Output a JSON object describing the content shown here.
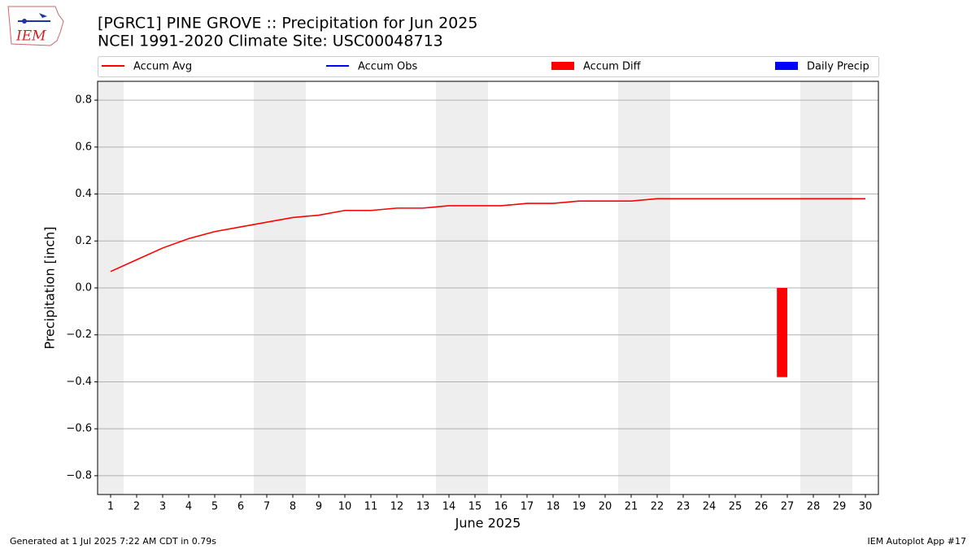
{
  "chart_data": {
    "type": "line",
    "title": "[PGRC1] PINE GROVE :: Precipitation for Jun 2025",
    "subtitle": "NCEI 1991-2020 Climate Site: USC00048713",
    "xlabel": "June 2025",
    "ylabel": "Precipitation [inch]",
    "logo": "IEM",
    "footer_left": "Generated at 1 Jul 2025 7:22 AM CDT in 0.79s",
    "footer_right": "IEM Autoplot App #17",
    "x": [
      1,
      2,
      3,
      4,
      5,
      6,
      7,
      8,
      9,
      10,
      11,
      12,
      13,
      14,
      15,
      16,
      17,
      18,
      19,
      20,
      21,
      22,
      23,
      24,
      25,
      26,
      27,
      28,
      29,
      30
    ],
    "xlim": [
      0.5,
      30.5
    ],
    "xticks": [
      1,
      2,
      3,
      4,
      5,
      6,
      7,
      8,
      9,
      10,
      11,
      12,
      13,
      14,
      15,
      16,
      17,
      18,
      19,
      20,
      21,
      22,
      23,
      24,
      25,
      26,
      27,
      28,
      29,
      30
    ],
    "ylim": [
      -0.88,
      0.88
    ],
    "yticks": [
      {
        "value": -0.8,
        "label": "−0.8"
      },
      {
        "value": -0.6,
        "label": "−0.6"
      },
      {
        "value": -0.4,
        "label": "−0.4"
      },
      {
        "value": -0.2,
        "label": "−0.2"
      },
      {
        "value": 0,
        "label": "0.0"
      },
      0.2,
      0.4,
      0.6,
      0.8
    ],
    "grid": true,
    "series": [
      {
        "name": "Accum Avg",
        "type": "line",
        "color": "#ff0000",
        "values": [
          0.07,
          0.12,
          0.17,
          0.21,
          0.24,
          0.26,
          0.28,
          0.3,
          0.31,
          0.33,
          0.33,
          0.34,
          0.34,
          0.35,
          0.35,
          0.35,
          0.36,
          0.36,
          0.37,
          0.37,
          0.37,
          0.38,
          0.38,
          0.38,
          0.38,
          0.38,
          0.38,
          0.38,
          0.38,
          0.38
        ]
      },
      {
        "name": "Accum Obs",
        "type": "line",
        "color": "#0000ff",
        "values": [
          null,
          null,
          null,
          null,
          null,
          null,
          null,
          null,
          null,
          null,
          null,
          null,
          null,
          null,
          null,
          null,
          null,
          null,
          null,
          null,
          null,
          null,
          null,
          null,
          null,
          null,
          null,
          null,
          null,
          null
        ]
      },
      {
        "name": "Accum Diff",
        "type": "bar",
        "color": "#ff0000",
        "values": [
          null,
          null,
          null,
          null,
          null,
          null,
          null,
          null,
          null,
          null,
          null,
          null,
          null,
          null,
          null,
          null,
          null,
          null,
          null,
          null,
          null,
          null,
          null,
          null,
          null,
          null,
          -0.38,
          null,
          null,
          null
        ]
      },
      {
        "name": "Daily Precip",
        "type": "bar",
        "color": "#0000ff",
        "values": [
          null,
          null,
          null,
          null,
          null,
          null,
          null,
          null,
          null,
          null,
          null,
          null,
          null,
          null,
          null,
          null,
          null,
          null,
          null,
          null,
          null,
          null,
          null,
          null,
          null,
          null,
          null,
          null,
          null,
          null
        ]
      }
    ]
  }
}
